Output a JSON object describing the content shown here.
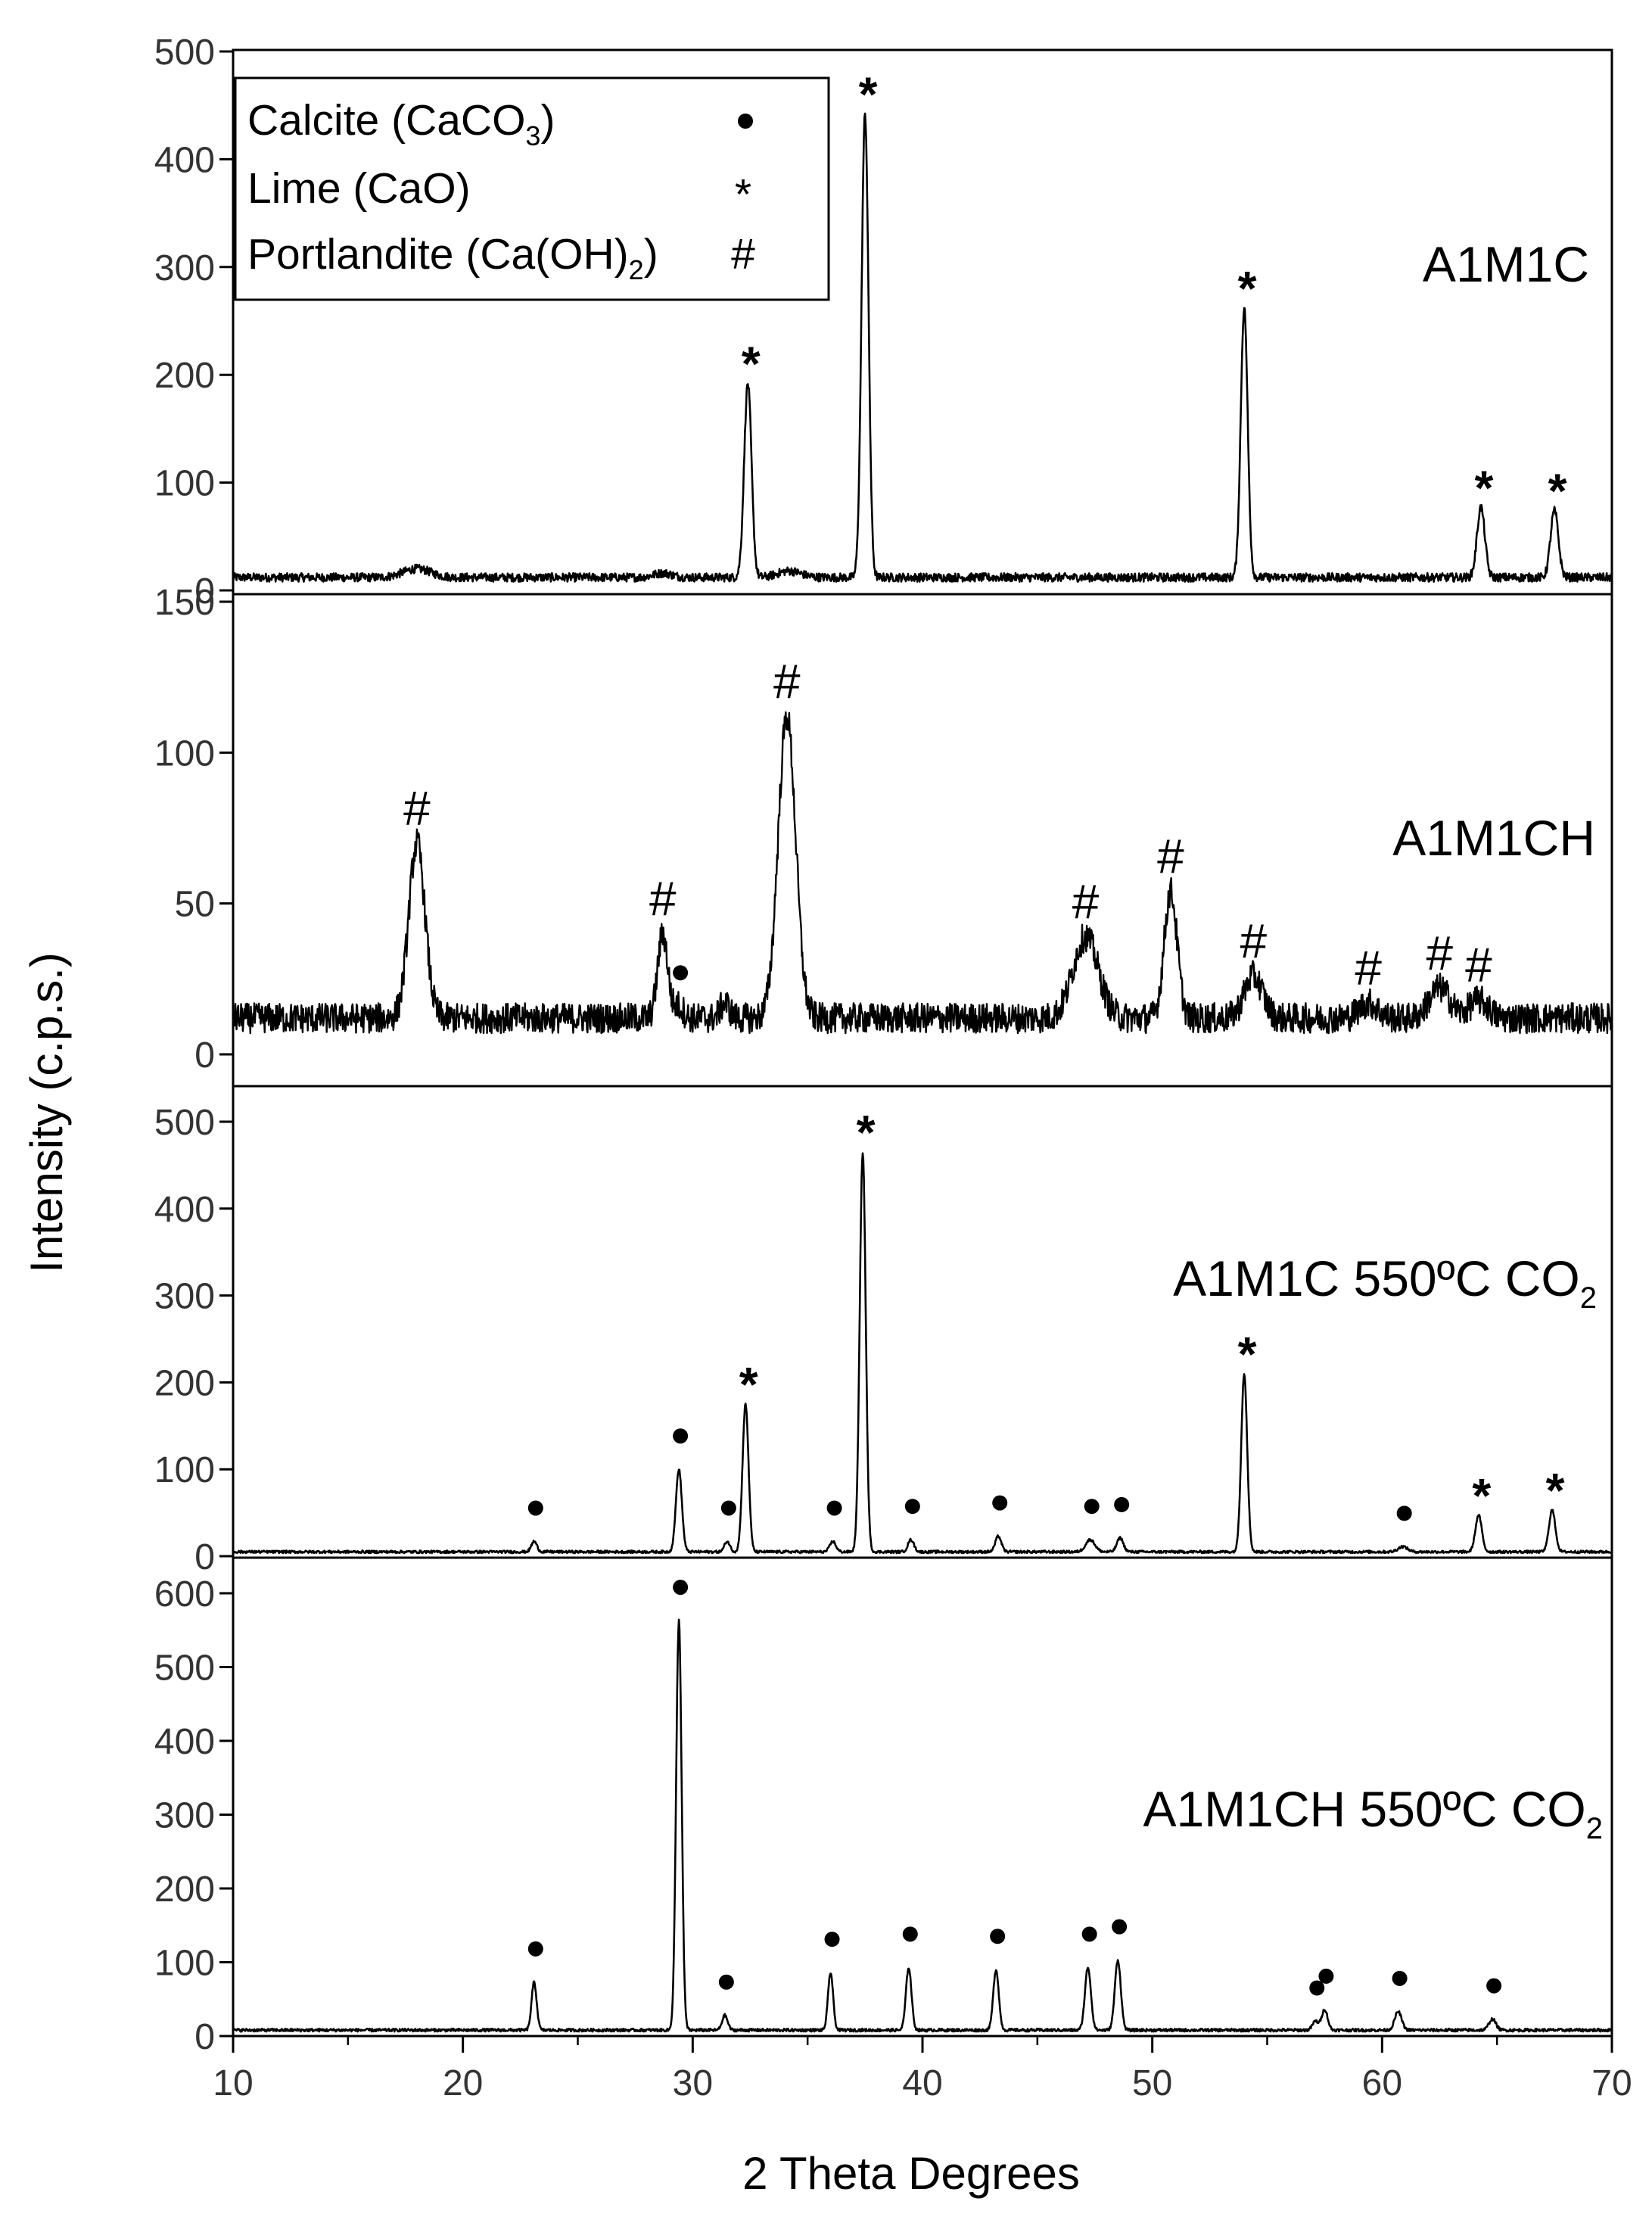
{
  "chart_data": {
    "type": "line",
    "xlabel": "2 Theta Degrees",
    "ylabel": "Intensity (c.p.s.)",
    "xlim": [
      10,
      70
    ],
    "xticks": [
      10,
      20,
      30,
      40,
      50,
      60,
      70
    ],
    "legend": {
      "position": "top-left",
      "entries": [
        {
          "label": "Calcite (CaCO",
          "sub": "3",
          "suffix": ")",
          "symbol": "●"
        },
        {
          "label": "Lime (CaO)",
          "sub": "",
          "suffix": "",
          "symbol": "*"
        },
        {
          "label": "Portlandite (Ca(OH)",
          "sub": "2",
          "suffix": ")",
          "symbol": "#"
        }
      ]
    },
    "panels": [
      {
        "name": "A1M1C",
        "sub": "",
        "ylim": [
          0,
          500
        ],
        "yticks": [
          0,
          100,
          200,
          300,
          400,
          500
        ],
        "baseline": 12,
        "noise": 4,
        "peaks": [
          {
            "x": 32.4,
            "y": 180,
            "w": 0.16,
            "marker": "*"
          },
          {
            "x": 37.5,
            "y": 430,
            "w": 0.15,
            "marker": "*"
          },
          {
            "x": 54.0,
            "y": 250,
            "w": 0.15,
            "marker": "*"
          },
          {
            "x": 64.3,
            "y": 65,
            "w": 0.17,
            "marker": "*"
          },
          {
            "x": 67.5,
            "y": 62,
            "w": 0.17,
            "marker": "*"
          },
          {
            "x": 18.0,
            "y": 8,
            "w": 0.6,
            "marker": ""
          },
          {
            "x": 28.7,
            "y": 4,
            "w": 0.4,
            "marker": ""
          },
          {
            "x": 34.2,
            "y": 6,
            "w": 0.5,
            "marker": ""
          }
        ]
      },
      {
        "name": "A1M1CH",
        "sub": "",
        "ylim": [
          0,
          150
        ],
        "yticks": [
          0,
          50,
          100,
          150
        ],
        "baseline": 12,
        "noise": 5,
        "peaks": [
          {
            "x": 18.0,
            "y": 58,
            "w": 0.35,
            "marker": "#"
          },
          {
            "x": 28.7,
            "y": 28,
            "w": 0.22,
            "marker": "#"
          },
          {
            "x": 29.4,
            "y": 4,
            "w": 0.2,
            "marker": "●"
          },
          {
            "x": 31.4,
            "y": 5,
            "w": 0.2,
            "marker": ""
          },
          {
            "x": 34.1,
            "y": 100,
            "w": 0.38,
            "marker": "#"
          },
          {
            "x": 47.1,
            "y": 27,
            "w": 0.55,
            "marker": "#"
          },
          {
            "x": 50.8,
            "y": 42,
            "w": 0.28,
            "marker": "#"
          },
          {
            "x": 54.4,
            "y": 14,
            "w": 0.4,
            "marker": "#"
          },
          {
            "x": 59.4,
            "y": 5,
            "w": 0.4,
            "marker": "#"
          },
          {
            "x": 62.5,
            "y": 10,
            "w": 0.45,
            "marker": "#"
          },
          {
            "x": 64.2,
            "y": 6,
            "w": 0.4,
            "marker": "#"
          }
        ]
      },
      {
        "name": "A1M1C 550ºC CO",
        "sub": "2",
        "ylim": [
          0,
          500
        ],
        "yticks": [
          0,
          100,
          200,
          300,
          400,
          500
        ],
        "baseline": 5,
        "noise": 1.5,
        "peaks": [
          {
            "x": 23.1,
            "y": 12,
            "w": 0.12,
            "marker": "●"
          },
          {
            "x": 29.4,
            "y": 95,
            "w": 0.13,
            "marker": "●"
          },
          {
            "x": 31.5,
            "y": 12,
            "w": 0.12,
            "marker": "●"
          },
          {
            "x": 32.3,
            "y": 170,
            "w": 0.13,
            "marker": "*"
          },
          {
            "x": 36.1,
            "y": 12,
            "w": 0.13,
            "marker": "●"
          },
          {
            "x": 37.4,
            "y": 460,
            "w": 0.13,
            "marker": "*"
          },
          {
            "x": 39.5,
            "y": 14,
            "w": 0.13,
            "marker": "●"
          },
          {
            "x": 43.3,
            "y": 18,
            "w": 0.13,
            "marker": "●"
          },
          {
            "x": 47.3,
            "y": 14,
            "w": 0.2,
            "marker": "●"
          },
          {
            "x": 48.6,
            "y": 16,
            "w": 0.14,
            "marker": "●"
          },
          {
            "x": 54.0,
            "y": 205,
            "w": 0.13,
            "marker": "*"
          },
          {
            "x": 60.9,
            "y": 6,
            "w": 0.2,
            "marker": "●"
          },
          {
            "x": 64.2,
            "y": 42,
            "w": 0.14,
            "marker": "*"
          },
          {
            "x": 67.4,
            "y": 48,
            "w": 0.14,
            "marker": "*"
          }
        ]
      },
      {
        "name": "A1M1CH 550ºC CO",
        "sub": "2",
        "ylim": [
          0,
          600
        ],
        "yticks": [
          0,
          100,
          200,
          300,
          400,
          500,
          600
        ],
        "baseline": 8,
        "noise": 2,
        "peaks": [
          {
            "x": 23.1,
            "y": 65,
            "w": 0.11,
            "marker": "●"
          },
          {
            "x": 29.4,
            "y": 555,
            "w": 0.12,
            "marker": "●"
          },
          {
            "x": 31.4,
            "y": 20,
            "w": 0.12,
            "marker": "●"
          },
          {
            "x": 36.0,
            "y": 78,
            "w": 0.11,
            "marker": "●"
          },
          {
            "x": 39.4,
            "y": 85,
            "w": 0.12,
            "marker": "●"
          },
          {
            "x": 43.2,
            "y": 82,
            "w": 0.12,
            "marker": "●"
          },
          {
            "x": 47.2,
            "y": 85,
            "w": 0.13,
            "marker": "●"
          },
          {
            "x": 48.5,
            "y": 95,
            "w": 0.13,
            "marker": "●"
          },
          {
            "x": 57.1,
            "y": 12,
            "w": 0.13,
            "marker": "●"
          },
          {
            "x": 57.5,
            "y": 28,
            "w": 0.13,
            "marker": "●"
          },
          {
            "x": 60.7,
            "y": 25,
            "w": 0.15,
            "marker": "●"
          },
          {
            "x": 64.8,
            "y": 15,
            "w": 0.15,
            "marker": "●"
          }
        ]
      }
    ]
  }
}
